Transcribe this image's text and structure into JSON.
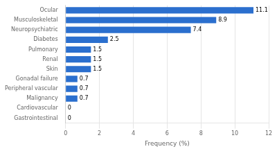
{
  "chart_data": {
    "type": "bar",
    "orientation": "horizontal",
    "categories": [
      "Gastrointestinal",
      "Cardiovascular",
      "Malignancy",
      "Peripheral vascular",
      "Gonadal failure",
      "Skin",
      "Renal",
      "Pulmonary",
      "Diabetes",
      "Neuropsychiatric",
      "Musculoskeletal",
      "Ocular"
    ],
    "values": [
      0,
      0,
      0.7,
      0.7,
      0.7,
      1.5,
      1.5,
      1.5,
      2.5,
      7.4,
      8.9,
      11.1
    ],
    "color": "#2b6fce",
    "xlabel": "Frequency (%)",
    "xlim": [
      0,
      12
    ],
    "xticks": [
      0,
      2,
      4,
      6,
      8,
      10,
      12
    ],
    "grid": true,
    "data_labels": true
  }
}
